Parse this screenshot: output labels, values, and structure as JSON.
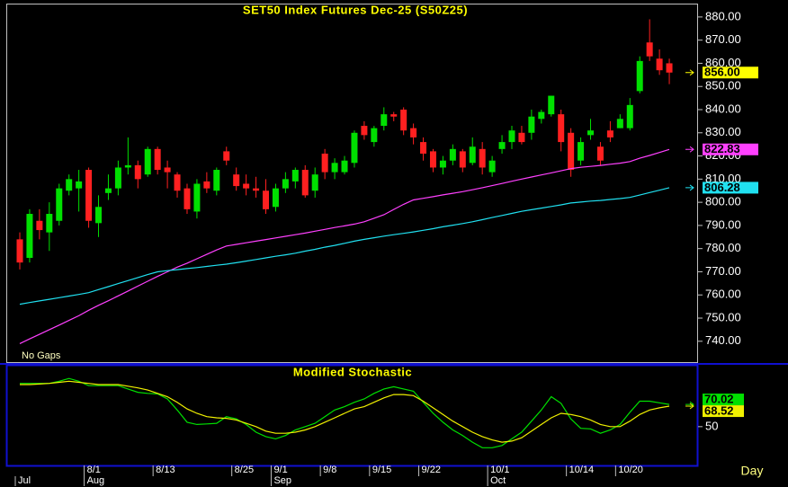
{
  "chart_data": [
    {
      "type": "candlestick",
      "title": "SET50 Index Futures Dec-25 (S50Z25)",
      "annotation": "No Gaps",
      "up_color": "#00e000",
      "down_color": "#ff2020",
      "open": [
        784,
        776,
        792,
        787,
        792,
        805,
        806,
        814,
        791,
        804,
        806,
        815,
        816,
        812,
        823,
        815,
        812,
        806,
        796,
        809,
        805,
        822,
        812,
        808,
        806,
        805,
        798,
        806,
        809,
        814,
        805,
        821,
        813,
        813,
        817,
        833,
        826,
        833,
        838,
        840,
        832,
        826,
        822,
        815,
        818,
        822,
        817,
        823,
        813,
        823,
        826,
        830,
        830,
        836,
        838,
        838,
        830,
        818,
        829,
        824,
        831,
        832,
        832,
        848,
        869,
        862,
        860
      ],
      "high": [
        787,
        797,
        797,
        800,
        808,
        812,
        814,
        815,
        803,
        812,
        818,
        828,
        818,
        824,
        824,
        818,
        813,
        808,
        810,
        813,
        815,
        824,
        815,
        812,
        811,
        810,
        808,
        813,
        815,
        816,
        815,
        823,
        819,
        820,
        831,
        835,
        833,
        841,
        839,
        841,
        834,
        828,
        823,
        820,
        825,
        823,
        828,
        826,
        820,
        829,
        833,
        833,
        840,
        840,
        846,
        840,
        832,
        828,
        836,
        826,
        835,
        838,
        845,
        863,
        879,
        866,
        862
      ],
      "low": [
        771,
        774,
        784,
        779,
        790,
        803,
        796,
        789,
        785,
        801,
        803,
        812,
        806,
        811,
        812,
        806,
        802,
        795,
        793,
        804,
        803,
        816,
        805,
        803,
        802,
        795,
        796,
        804,
        806,
        802,
        802,
        810,
        810,
        812,
        815,
        827,
        824,
        831,
        835,
        829,
        825,
        818,
        813,
        812,
        816,
        813,
        816,
        812,
        811,
        821,
        823,
        825,
        827,
        834,
        837,
        822,
        811,
        816,
        827,
        816,
        826,
        832,
        831,
        847,
        861,
        855,
        851
      ],
      "close": [
        774,
        795,
        788,
        795,
        806,
        810,
        809,
        792,
        798,
        806,
        815,
        816,
        810,
        823,
        814,
        813,
        805,
        797,
        808,
        806,
        814,
        818,
        807,
        806,
        805,
        797,
        806,
        810,
        814,
        803,
        812,
        813,
        817,
        818,
        830,
        829,
        832,
        838,
        837,
        831,
        828,
        821,
        815,
        818,
        823,
        815,
        824,
        815,
        818,
        826,
        831,
        826,
        837,
        839,
        846,
        826,
        814,
        826,
        831,
        818,
        828,
        836,
        842,
        861,
        863,
        857,
        856
      ],
      "last_label": "856.00",
      "label_color": "#ffff00",
      "series": [
        {
          "color": "#ff40ff",
          "last_label": "822.83",
          "values": [
            739,
            741,
            743,
            745,
            747,
            749,
            751,
            753.4,
            755.5,
            757.5,
            759.6,
            761.7,
            763.8,
            765.9,
            768,
            770,
            772,
            773.7,
            775.6,
            777.5,
            779.4,
            781.1,
            781.8,
            782.5,
            783.2,
            783.9,
            784.6,
            785.3,
            786,
            786.7,
            787.5,
            788.3,
            789.1,
            789.8,
            790.6,
            791.6,
            793.1,
            794.6,
            796.9,
            799.1,
            801,
            801.7,
            802.4,
            803.2,
            803.9,
            804.6,
            805.4,
            806.3,
            807.2,
            808.1,
            809.1,
            810,
            810.9,
            811.8,
            812.7,
            813.6,
            814.5,
            815.1,
            815.5,
            815.9,
            816.4,
            816.9,
            817.6,
            819,
            820.2,
            821.5,
            822.83
          ]
        },
        {
          "color": "#20e0f0",
          "last_label": "806.28",
          "values": [
            756,
            756.7,
            757.4,
            758.1,
            758.8,
            759.5,
            760.2,
            761,
            762.3,
            763.6,
            764.9,
            766.2,
            767.5,
            768.8,
            770,
            770.5,
            770.9,
            771.4,
            771.8,
            772.3,
            772.8,
            773.3,
            773.9,
            774.6,
            775.3,
            776,
            776.7,
            777.3,
            778,
            778.9,
            779.7,
            780.6,
            781.4,
            782.3,
            783.2,
            784,
            784.7,
            785.4,
            786,
            786.6,
            787.2,
            787.9,
            788.6,
            789.4,
            790.1,
            790.8,
            791.6,
            792.5,
            793.4,
            794.3,
            795.2,
            796.1,
            796.8,
            797.5,
            798.2,
            798.9,
            799.7,
            800.1,
            800.5,
            800.8,
            801.2,
            801.6,
            802.1,
            803.1,
            804.2,
            805.2,
            806.28
          ]
        }
      ],
      "ylim": [
        731,
        885
      ],
      "yticks": [
        {
          "value": 740,
          "label": "740.00"
        },
        {
          "value": 750,
          "label": "750.00"
        },
        {
          "value": 760,
          "label": "760.00"
        },
        {
          "value": 770,
          "label": "770.00"
        },
        {
          "value": 780,
          "label": "780.00"
        },
        {
          "value": 790,
          "label": "790.00"
        },
        {
          "value": 800,
          "label": "800.00"
        },
        {
          "value": 810,
          "label": "810.00"
        },
        {
          "value": 820,
          "label": "820.00"
        },
        {
          "value": 830,
          "label": "830.00"
        },
        {
          "value": 840,
          "label": "840.00"
        },
        {
          "value": 850,
          "label": "850.00"
        },
        {
          "value": 860,
          "label": "860.00"
        },
        {
          "value": 870,
          "label": "870.00"
        },
        {
          "value": 880,
          "label": "880.00"
        }
      ]
    },
    {
      "type": "line",
      "title": "Modified Stochastic",
      "series": [
        {
          "color": "#00e000",
          "last_label": "70.02",
          "values": [
            89,
            89,
            89,
            89,
            91,
            93.5,
            91,
            87,
            87,
            87,
            87,
            84,
            81,
            80,
            79.5,
            75,
            65,
            54,
            52,
            52.5,
            53,
            59,
            57,
            52,
            45,
            41,
            39,
            42,
            47,
            50,
            53,
            59,
            65,
            68,
            72,
            75,
            80,
            84,
            86,
            84,
            82,
            72,
            62,
            54,
            47,
            42,
            36,
            31,
            31,
            33,
            39,
            45,
            55,
            65,
            77,
            71,
            57,
            48.5,
            48,
            44,
            47,
            52,
            63,
            73,
            73,
            71.5,
            70.02
          ]
        },
        {
          "color": "#f0f000",
          "last_label": "68.52",
          "values": [
            88,
            88,
            88.5,
            89,
            90,
            91,
            90,
            89,
            88,
            88,
            88,
            86.5,
            85,
            83,
            80,
            77,
            72,
            66,
            62,
            59,
            58,
            57.5,
            56,
            53,
            50,
            46,
            44,
            44,
            45,
            47,
            50,
            54,
            58,
            62,
            66,
            68,
            72,
            76,
            79,
            79,
            78,
            73,
            67,
            61,
            55,
            50,
            45,
            41,
            38,
            36,
            37,
            40,
            46,
            52,
            58,
            62,
            61,
            59,
            56,
            52,
            50,
            50,
            55,
            61,
            65,
            67,
            68.52
          ]
        }
      ],
      "ylim": [
        15,
        105
      ],
      "yticks": [
        50
      ],
      "xticks": [
        {
          "value": 7,
          "label": "8/1"
        },
        {
          "value": 14,
          "label": "8/13"
        },
        {
          "value": 22,
          "label": "8/25"
        },
        {
          "value": 26,
          "label": "9/1"
        },
        {
          "value": 31,
          "label": "9/8"
        },
        {
          "value": 36,
          "label": "9/15"
        },
        {
          "value": 41,
          "label": "9/22"
        },
        {
          "value": 48,
          "label": "10/1"
        },
        {
          "value": 56,
          "label": "10/14"
        },
        {
          "value": 61,
          "label": "10/20"
        }
      ],
      "month_ticks": [
        {
          "value": 0,
          "label": "Jul"
        },
        {
          "value": 7,
          "label": "Aug"
        },
        {
          "value": 26,
          "label": "Sep"
        },
        {
          "value": 48,
          "label": "Oct"
        }
      ],
      "xlabel": "Day"
    }
  ]
}
